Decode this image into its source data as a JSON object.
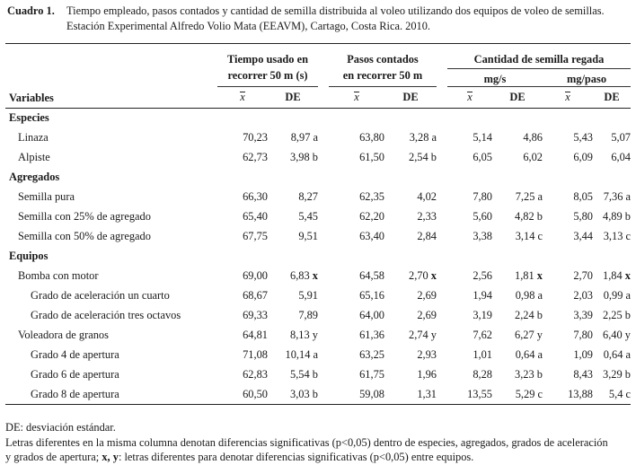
{
  "caption": {
    "label": "Cuadro 1.",
    "line1": "Tiempo empleado, pasos contados y cantidad de semilla distribuida al voleo utilizando dos equipos de voleo de semillas.",
    "line2": "Estación Experimental Alfredo Volio Mata (EEAVM), Cartago, Costa Rica. 2010."
  },
  "headers": {
    "tiempo_l1": "Tiempo usado en",
    "tiempo_l2": "recorrer 50 m (s)",
    "pasos_l1": "Pasos contados",
    "pasos_l2": "en recorrer 50 m",
    "cantidad": "Cantidad de semilla regada",
    "mgs": "mg/s",
    "mgpaso": "mg/paso",
    "variables": "Variables",
    "mean_symbol": "x",
    "de": "DE"
  },
  "groups": [
    {
      "title": "Especies",
      "rows": [
        {
          "label": "Linaza",
          "level": 1,
          "t_mean": "70,23",
          "t_de": "8,97 a",
          "p_mean": "63,80",
          "p_de": "3,28 a",
          "s_mean": "5,14",
          "s_de": "4,86",
          "q_mean": "5,43",
          "q_de": "5,07"
        },
        {
          "label": "Alpiste",
          "level": 1,
          "t_mean": "62,73",
          "t_de": "3,98 b",
          "p_mean": "61,50",
          "p_de": "2,54 b",
          "s_mean": "6,05",
          "s_de": "6,02",
          "q_mean": "6,09",
          "q_de": "6,04"
        }
      ]
    },
    {
      "title": "Agregados",
      "rows": [
        {
          "label": "Semilla pura",
          "level": 1,
          "t_mean": "66,30",
          "t_de": "8,27",
          "p_mean": "62,35",
          "p_de": "4,02",
          "s_mean": "7,80",
          "s_de": "7,25 a",
          "q_mean": "8,05",
          "q_de": "7,36 a"
        },
        {
          "label": "Semilla con 25% de agregado",
          "level": 1,
          "t_mean": "65,40",
          "t_de": "5,45",
          "p_mean": "62,20",
          "p_de": "2,33",
          "s_mean": "5,60",
          "s_de": "4,82 b",
          "q_mean": "5,80",
          "q_de": "4,89 b"
        },
        {
          "label": "Semilla con 50% de agregado",
          "level": 1,
          "t_mean": "67,75",
          "t_de": "9,51",
          "p_mean": "63,40",
          "p_de": "2,84",
          "s_mean": "3,38",
          "s_de": "3,14 c",
          "q_mean": "3,44",
          "q_de": "3,13 c"
        }
      ]
    },
    {
      "title": "Equipos",
      "rows": [
        {
          "label": "Bomba con motor",
          "level": 1,
          "t_mean": "69,00",
          "t_de": "6,83",
          "t_letter": "x",
          "p_mean": "64,58",
          "p_de": "2,70",
          "p_letter": "x",
          "s_mean": "2,56",
          "s_de": "1,81",
          "s_letter": "x",
          "q_mean": "2,70",
          "q_de": "1,84",
          "q_letter": "x"
        },
        {
          "label": "Grado de aceleración un cuarto",
          "level": 2,
          "t_mean": "68,67",
          "t_de": "5,91",
          "p_mean": "65,16",
          "p_de": "2,69",
          "s_mean": "1,94",
          "s_de": "0,98 a",
          "q_mean": "2,03",
          "q_de": "0,99 a"
        },
        {
          "label": "Grado de aceleración tres octavos",
          "level": 2,
          "t_mean": "69,33",
          "t_de": "7,89",
          "p_mean": "64,00",
          "p_de": "2,69",
          "s_mean": "3,19",
          "s_de": "2,24 b",
          "q_mean": "3,39",
          "q_de": "2,25 b"
        },
        {
          "label": "Voleadora de granos",
          "level": 1,
          "t_mean": "64,81",
          "t_de": "8,13 y",
          "p_mean": "61,36",
          "p_de": "2,74 y",
          "s_mean": "7,62",
          "s_de": "6,27 y",
          "q_mean": "7,80",
          "q_de": "6,40 y"
        },
        {
          "label": "Grado 4 de apertura",
          "level": 2,
          "t_mean": "71,08",
          "t_de": "10,14 a",
          "p_mean": "63,25",
          "p_de": "2,93",
          "s_mean": "1,01",
          "s_de": "0,64 a",
          "q_mean": "1,09",
          "q_de": "0,64 a"
        },
        {
          "label": "Grado 6 de apertura",
          "level": 2,
          "t_mean": "62,83",
          "t_de": "5,54 b",
          "p_mean": "61,75",
          "p_de": "1,96",
          "s_mean": "8,28",
          "s_de": "3,23 b",
          "q_mean": "8,43",
          "q_de": "3,29 b"
        },
        {
          "label": "Grado 8 de apertura",
          "level": 2,
          "t_mean": "60,50",
          "t_de": "3,03 b",
          "p_mean": "59,08",
          "p_de": "1,31",
          "s_mean": "13,55",
          "s_de": "5,29 c",
          "q_mean": "13,88",
          "q_de": "5,4 c"
        }
      ]
    }
  ],
  "footnotes": {
    "line1": "DE: desviación estándar.",
    "line2": "Letras diferentes en la misma columna denotan diferencias significativas (p<0,05) dentro de especies, agregados, grados de aceleración",
    "line3_pre": "y grados de apertura; ",
    "line3_bold": "x, y",
    "line3_post": ": letras diferentes para denotar diferencias significativas (p<0,05) entre equipos."
  }
}
